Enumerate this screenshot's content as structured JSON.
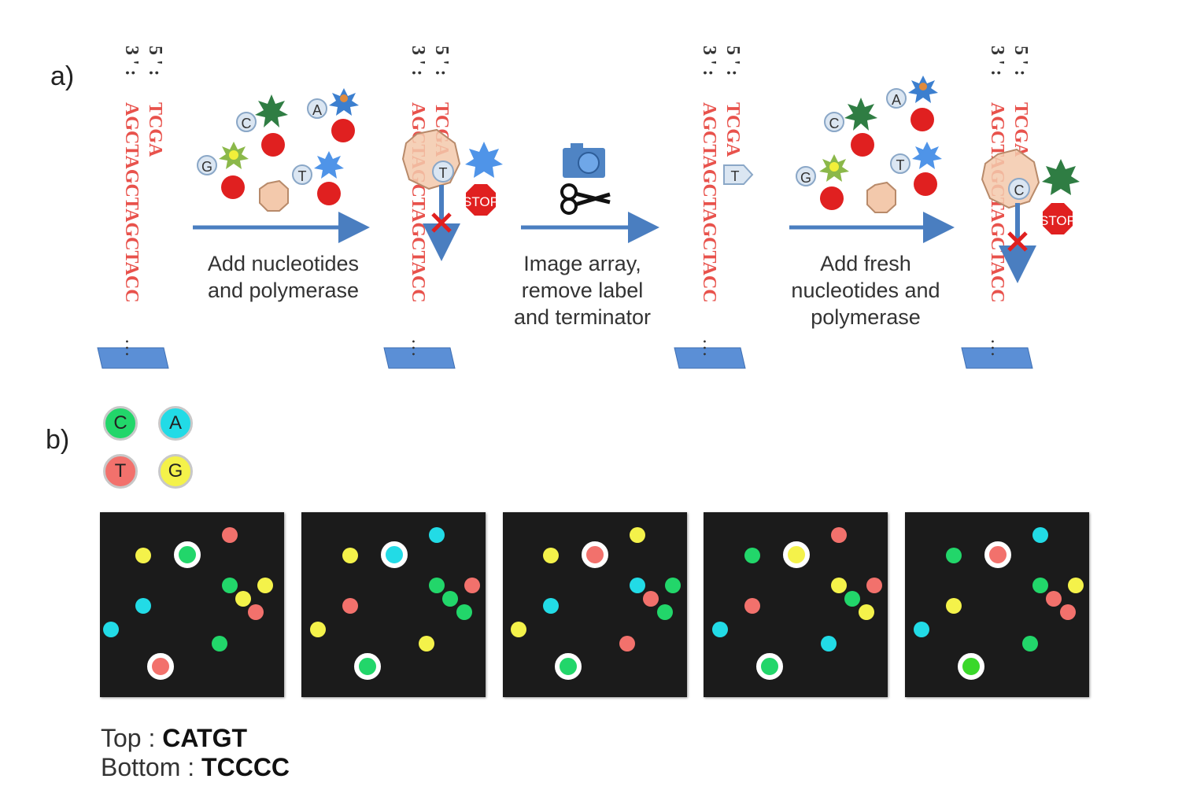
{
  "panel_a": {
    "label": "a)",
    "strand_template": "AGCTAGCTAGCTACC",
    "strand_primer": "TCGA",
    "end_top": "5 ' :",
    "end_bottom": "3 ' :",
    "ellipsis": "…",
    "steps": [
      {
        "line1": "Add nucleotides",
        "line2": "and polymerase",
        "line3": ""
      },
      {
        "line1": "Image array,",
        "line2": "remove label",
        "line3": "and terminator"
      },
      {
        "line1": "Add fresh",
        "line2": "nucleotides and",
        "line3": "polymerase"
      }
    ],
    "nucleotides": {
      "C": "C",
      "A": "A",
      "G": "G",
      "T": "T"
    },
    "added_bases": {
      "first": "T",
      "second": "C"
    },
    "stop_label": "STOP",
    "icons": [
      "camera-icon",
      "scissors-icon"
    ]
  },
  "panel_b": {
    "label": "b)",
    "legend": [
      {
        "base": "C",
        "color": "#22d66a"
      },
      {
        "base": "A",
        "color": "#22dbe6"
      },
      {
        "base": "T",
        "color": "#f2716c"
      },
      {
        "base": "G",
        "color": "#f4f24a"
      }
    ],
    "result_top_label": "Top : ",
    "result_top_value": "CATGT",
    "result_bottom_label": "Bottom : ",
    "result_bottom_value": "TCCCC"
  }
}
